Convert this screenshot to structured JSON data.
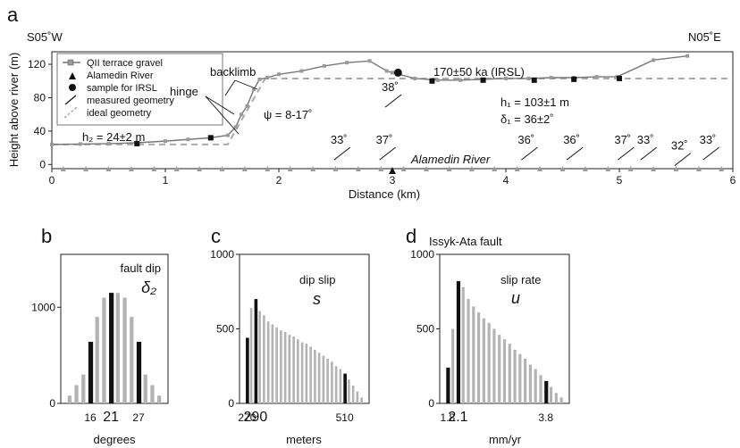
{
  "chart_data": [
    {
      "panel": "a",
      "type": "line",
      "orient_left": "S05˚W",
      "orient_right": "N05˚E",
      "xlabel": "Distance (km)",
      "ylabel": "Height above river (m)",
      "xlim": [
        0,
        6
      ],
      "ylim": [
        -5,
        135
      ],
      "xticks": [
        "0",
        "1",
        "2",
        "3",
        "4",
        "5",
        "6"
      ],
      "yticks": [
        "0",
        "40",
        "80",
        "120"
      ],
      "legend": [
        {
          "label": "QII terrace gravel",
          "symbol": "gray-square-line"
        },
        {
          "label": "Alamedin River",
          "symbol": "triangle"
        },
        {
          "label": "sample for IRSL",
          "symbol": "black-dot"
        },
        {
          "label": "measured geometry",
          "symbol": "short-line"
        },
        {
          "label": "ideal geometry",
          "symbol": "dashed-line"
        }
      ],
      "series": [
        {
          "name": "QII terrace gravel",
          "x": [
            0.0,
            0.25,
            0.5,
            0.75,
            1.0,
            1.2,
            1.4,
            1.55,
            1.62,
            1.67,
            1.72,
            1.78,
            1.83,
            1.9,
            2.0,
            2.2,
            2.4,
            2.6,
            2.8,
            2.95,
            3.0,
            3.2,
            3.4,
            3.6,
            3.8,
            4.0,
            4.2,
            4.4,
            4.6,
            4.8,
            4.98,
            5.3,
            5.6
          ],
          "y": [
            24,
            24.5,
            25,
            26,
            28,
            30,
            32,
            35,
            45,
            60,
            70,
            90,
            102,
            104,
            108,
            112,
            118,
            122,
            124,
            112,
            110,
            103,
            101,
            101,
            102,
            103,
            103,
            104,
            104,
            105,
            105,
            125,
            130
          ]
        },
        {
          "name": "Alamedin River",
          "x": [
            0.1,
            0.3,
            0.5,
            0.7,
            0.9,
            1.1,
            1.3,
            1.5,
            1.7,
            1.9,
            2.1,
            2.3,
            2.5,
            2.7,
            2.9,
            3.1,
            3.3,
            3.5,
            3.7,
            3.9,
            4.1,
            4.3,
            4.5,
            4.7,
            4.9,
            5.1,
            5.3,
            5.5,
            5.7,
            5.9
          ],
          "y": [
            -5,
            -5,
            -5,
            -5,
            -5,
            -5,
            -5,
            -5,
            -5,
            -5,
            -5,
            -5,
            -5,
            -5,
            -5,
            -5,
            -5,
            -5,
            -5,
            -5,
            -5,
            -5,
            -5,
            -5,
            -5,
            -5,
            -5,
            -5,
            -5,
            -5
          ]
        },
        {
          "name": "sample for IRSL",
          "x": [
            0.75,
            1.4,
            3.35,
            3.8,
            4.25,
            4.6,
            5.0
          ],
          "y": [
            25,
            32,
            100,
            101,
            101,
            102,
            103
          ]
        }
      ],
      "irsl_point": {
        "x": 3.05,
        "y": 110
      },
      "ideal_geometry": {
        "x": [
          0.0,
          1.55,
          1.88,
          6.0
        ],
        "y": [
          24,
          24,
          103,
          103
        ]
      },
      "dips": [
        {
          "label": "33˚",
          "x": 2.55,
          "y": 12
        },
        {
          "label": "37˚",
          "x": 2.95,
          "y": 12
        },
        {
          "label": "38˚",
          "x": 3.0,
          "y": 75
        },
        {
          "label": "36˚",
          "x": 4.2,
          "y": 12
        },
        {
          "label": "36˚",
          "x": 4.6,
          "y": 12
        },
        {
          "label": "37˚",
          "x": 5.05,
          "y": 12
        },
        {
          "label": "33˚",
          "x": 5.25,
          "y": 12
        },
        {
          "label": "32˚",
          "x": 5.55,
          "y": 5
        },
        {
          "label": "33˚",
          "x": 5.8,
          "y": 12
        }
      ],
      "annotations": {
        "hinge": "hinge",
        "backlimb": "backlimb",
        "psi": "ψ = 8-17˚",
        "irsl": "170±50 ka (IRSL)",
        "h1": "h₁ = 103±1 m",
        "delta1": "δ₁ = 36±2˚",
        "h2": "h₂ = 24±2 m",
        "river": "Alamedin River"
      }
    },
    {
      "panel": "b",
      "type": "bar",
      "title": "fault dip",
      "symbol": "δ₂",
      "xlabel": "degrees",
      "xticks": [
        "16",
        "21",
        "27"
      ],
      "yticks": [
        "0",
        "1000"
      ],
      "ylim": [
        0,
        1550
      ],
      "highlight_indices": [
        3,
        6,
        10
      ],
      "values": [
        80,
        190,
        300,
        640,
        900,
        1100,
        1150,
        1150,
        1100,
        900,
        640,
        300,
        190,
        80
      ]
    },
    {
      "panel": "c",
      "type": "bar",
      "title": "dip slip",
      "symbol": "s",
      "xlabel": "meters",
      "xticks": [
        "270",
        "290",
        "510"
      ],
      "yticks": [
        "0",
        "500",
        "1000"
      ],
      "ylim": [
        0,
        1000
      ],
      "highlight_indices": [
        0,
        2,
        23
      ],
      "values": [
        440,
        640,
        700,
        620,
        590,
        550,
        530,
        510,
        490,
        480,
        460,
        450,
        430,
        410,
        400,
        380,
        360,
        340,
        320,
        300,
        280,
        250,
        230,
        200,
        160,
        120,
        80,
        40
      ]
    },
    {
      "panel": "d",
      "type": "bar",
      "title": "Issyk-Ata fault",
      "subtitle": "slip rate",
      "symbol": "u",
      "xlabel": "mm/yr",
      "xticks": [
        "1.8",
        "2.1",
        "3.8"
      ],
      "yticks": [
        "0",
        "500",
        "1000"
      ],
      "ylim": [
        0,
        1000
      ],
      "highlight_indices": [
        0,
        2,
        19
      ],
      "values": [
        240,
        500,
        820,
        780,
        700,
        650,
        610,
        570,
        540,
        500,
        460,
        430,
        400,
        360,
        330,
        300,
        260,
        230,
        190,
        150,
        110,
        70,
        40
      ]
    }
  ]
}
